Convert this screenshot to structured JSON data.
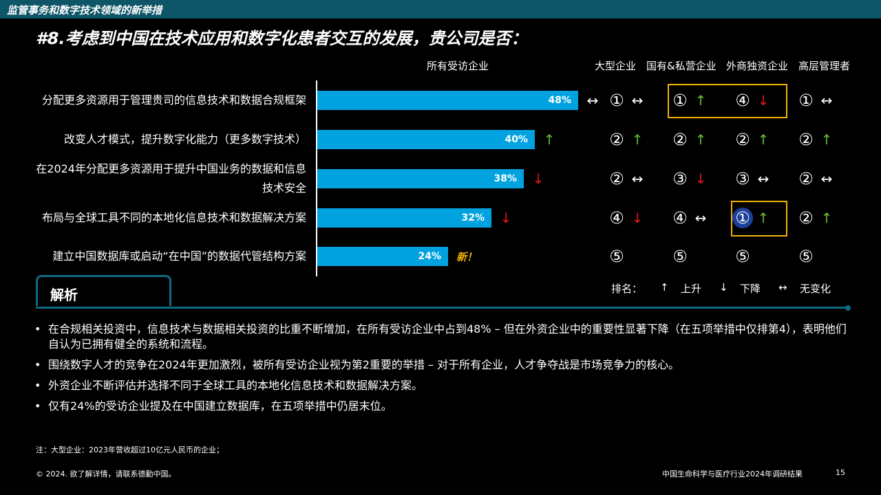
{
  "header": {
    "section": "监管事务和数字技术领域的新举措"
  },
  "title": "#8.考虑到中国在技术应用和数字化患者交互的发展，贵公司是否：",
  "columns": [
    "所有受访企业",
    "大型企业",
    "国有&私营企业",
    "外商独资企业",
    "高层管理者"
  ],
  "chart_data": {
    "type": "bar",
    "categories": [
      "分配更多资源用于管理贵司的信息技术和数据合规框架",
      "改变人才模式，提升数字化能力（更多数字技术）",
      "在2024年分配更多资源用于提升中国业务的数据和信息技术安全",
      "布局与全球工具不同的本地化信息技术和数据解决方案",
      "建立中国数据库或启动“在中国”的数据代管结构方案"
    ],
    "series": [
      {
        "name": "所有受访企业",
        "values": [
          48,
          40,
          38,
          32,
          24
        ]
      }
    ],
    "value_labels": [
      "48%",
      "40%",
      "38%",
      "32%",
      "24%"
    ],
    "unit": "%",
    "trend_all": [
      "same",
      "up",
      "down",
      "down",
      "new"
    ],
    "new_label": "新！",
    "segments": [
      {
        "name": "大型企业",
        "ranks": [
          "①",
          "②",
          "②",
          "④",
          "⑤"
        ],
        "trends": [
          "same",
          "up",
          "same",
          "down",
          ""
        ]
      },
      {
        "name": "国有&私营企业",
        "ranks": [
          "①",
          "②",
          "③",
          "④",
          "⑤"
        ],
        "trends": [
          "up",
          "up",
          "down",
          "same",
          ""
        ]
      },
      {
        "name": "外商独资企业",
        "ranks": [
          "④",
          "②",
          "③",
          "①",
          "⑤"
        ],
        "trends": [
          "down",
          "up",
          "same",
          "up",
          ""
        ]
      },
      {
        "name": "高层管理者",
        "ranks": [
          "①",
          "②",
          "②",
          "②",
          "⑤"
        ],
        "trends": [
          "same",
          "up",
          "same",
          "up",
          ""
        ]
      }
    ],
    "highlights": [
      {
        "segment": "国有&私营企业",
        "row": 0
      },
      {
        "segment": "外商独资企业",
        "row": 0
      },
      {
        "segment": "外商独资企业",
        "row": 3
      }
    ],
    "colors": {
      "bar": "#00a3e0",
      "up": "#6abf2e",
      "down": "#e4151f",
      "highlight": "#f2b300"
    }
  },
  "legend": {
    "label": "排名：",
    "up": "上升",
    "down": "下降",
    "same": "无变化"
  },
  "analysis": {
    "tab": "解析",
    "bullets": [
      "在合规相关投资中，信息技术与数据相关投资的比重不断增加，在所有受访企业中占到48% – 但在外资企业中的重要性显著下降（在五项举措中仅排第4），表明他们自认为已拥有健全的系统和流程。",
      "围绕数字人才的竞争在2024年更加激烈，被所有受访企业视为第2重要的举措 – 对于所有企业，人才争夺战是市场竞争力的核心。",
      "外资企业不断评估并选择不同于全球工具的本地化信息技术和数据解决方案。",
      "仅有24%的受访企业提及在中国建立数据库，在五项举措中仍居末位。"
    ]
  },
  "note": "注：大型企业：2023年营收超过10亿元人民币的企业；",
  "footer": {
    "copyright": "© 2024. 欲了解详情，请联系德勤中国。",
    "report": "中国生命科学与医疗行业2024年调研结果",
    "page": "15"
  }
}
